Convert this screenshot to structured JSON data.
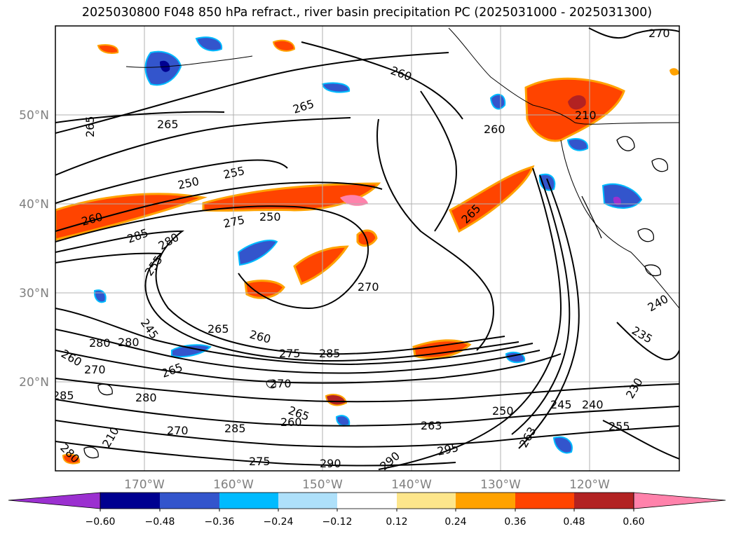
{
  "title": "2025030800 F048 850 hPa refract., river basin precipitation PC (2025031000 - 2025031300)",
  "map": {
    "lat_labels": [
      "50°N",
      "40°N",
      "30°N",
      "20°N"
    ],
    "lon_labels": [
      "170°W",
      "160°W",
      "150°W",
      "140°W",
      "130°W",
      "120°W"
    ],
    "contour_labels": [
      "270",
      "265",
      "265",
      "265",
      "260",
      "260",
      "255",
      "250",
      "260",
      "250",
      "275",
      "285",
      "280",
      "270",
      "210",
      "255",
      "265",
      "245",
      "260",
      "285",
      "280",
      "280",
      "265",
      "260",
      "270",
      "275",
      "285",
      "280",
      "265",
      "265",
      "275",
      "290",
      "260",
      "285",
      "270",
      "270",
      "280",
      "263",
      "295",
      "290",
      "250",
      "245",
      "240",
      "255",
      "230",
      "235",
      "240",
      "263",
      "210"
    ]
  },
  "colorbar": {
    "ticks": [
      "−0.60",
      "−0.48",
      "−0.36",
      "−0.24",
      "−0.12",
      "0.12",
      "0.24",
      "0.36",
      "0.48",
      "0.60"
    ],
    "colors": [
      "#9b30d0",
      "#000090",
      "#3355cc",
      "#00bbff",
      "#aee0fa",
      "#ffffff",
      "#fde68b",
      "#ffa200",
      "#ff4400",
      "#b22222",
      "#ff82ab"
    ]
  }
}
